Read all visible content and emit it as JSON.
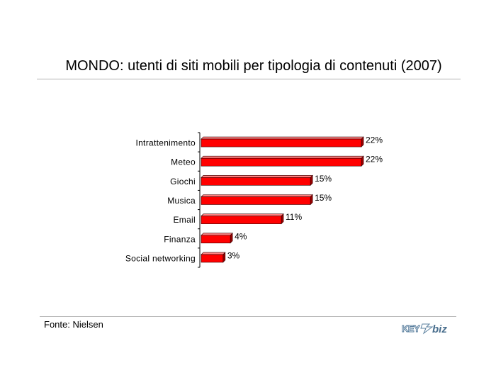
{
  "slide": {
    "title": "MONDO: utenti di siti mobili per tipologia di contenuti (2007)",
    "source": "Fonte: Nielsen",
    "logo_text": "KEY4biz"
  },
  "colors": {
    "bar_face": "#ff0000",
    "bar_top": "#ff8080",
    "bar_side": "#990000",
    "bar_outline": "#330000"
  },
  "chart_data": {
    "type": "bar",
    "orientation": "horizontal",
    "title": "MONDO: utenti di siti mobili per tipologia di contenuti (2007)",
    "categories": [
      "Intrattenimento",
      "Meteo",
      "Giochi",
      "Musica",
      "Email",
      "Finanza",
      "Social networking"
    ],
    "values": [
      22,
      22,
      15,
      15,
      11,
      4,
      3
    ],
    "value_labels": [
      "22%",
      "22%",
      "15%",
      "15%",
      "11%",
      "4%",
      "3%"
    ],
    "unit": "%",
    "xlim": [
      0,
      22
    ],
    "grid": false,
    "legend": "none",
    "style": "3d"
  }
}
